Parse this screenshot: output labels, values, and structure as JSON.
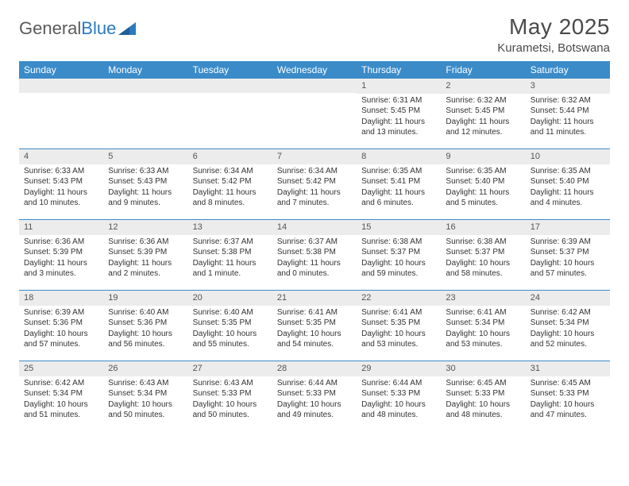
{
  "brand": {
    "part1": "General",
    "part2": "Blue"
  },
  "title": "May 2025",
  "location": "Kurametsi, Botswana",
  "colors": {
    "header_bg": "#3b8bc9",
    "header_text": "#ffffff",
    "daynum_bg": "#ececec",
    "week_border": "#3b8bc9",
    "text": "#333333",
    "logo_gray": "#5a5a5a",
    "logo_blue": "#2a7ac0"
  },
  "typography": {
    "month_title_pt": 28,
    "location_pt": 15,
    "weekday_pt": 12,
    "cell_pt": 10
  },
  "weekdays": [
    "Sunday",
    "Monday",
    "Tuesday",
    "Wednesday",
    "Thursday",
    "Friday",
    "Saturday"
  ],
  "weeks": [
    [
      null,
      null,
      null,
      null,
      {
        "n": "1",
        "sr": "6:31 AM",
        "ss": "5:45 PM",
        "dl": "11 hours and 13 minutes."
      },
      {
        "n": "2",
        "sr": "6:32 AM",
        "ss": "5:45 PM",
        "dl": "11 hours and 12 minutes."
      },
      {
        "n": "3",
        "sr": "6:32 AM",
        "ss": "5:44 PM",
        "dl": "11 hours and 11 minutes."
      }
    ],
    [
      {
        "n": "4",
        "sr": "6:33 AM",
        "ss": "5:43 PM",
        "dl": "11 hours and 10 minutes."
      },
      {
        "n": "5",
        "sr": "6:33 AM",
        "ss": "5:43 PM",
        "dl": "11 hours and 9 minutes."
      },
      {
        "n": "6",
        "sr": "6:34 AM",
        "ss": "5:42 PM",
        "dl": "11 hours and 8 minutes."
      },
      {
        "n": "7",
        "sr": "6:34 AM",
        "ss": "5:42 PM",
        "dl": "11 hours and 7 minutes."
      },
      {
        "n": "8",
        "sr": "6:35 AM",
        "ss": "5:41 PM",
        "dl": "11 hours and 6 minutes."
      },
      {
        "n": "9",
        "sr": "6:35 AM",
        "ss": "5:40 PM",
        "dl": "11 hours and 5 minutes."
      },
      {
        "n": "10",
        "sr": "6:35 AM",
        "ss": "5:40 PM",
        "dl": "11 hours and 4 minutes."
      }
    ],
    [
      {
        "n": "11",
        "sr": "6:36 AM",
        "ss": "5:39 PM",
        "dl": "11 hours and 3 minutes."
      },
      {
        "n": "12",
        "sr": "6:36 AM",
        "ss": "5:39 PM",
        "dl": "11 hours and 2 minutes."
      },
      {
        "n": "13",
        "sr": "6:37 AM",
        "ss": "5:38 PM",
        "dl": "11 hours and 1 minute."
      },
      {
        "n": "14",
        "sr": "6:37 AM",
        "ss": "5:38 PM",
        "dl": "11 hours and 0 minutes."
      },
      {
        "n": "15",
        "sr": "6:38 AM",
        "ss": "5:37 PM",
        "dl": "10 hours and 59 minutes."
      },
      {
        "n": "16",
        "sr": "6:38 AM",
        "ss": "5:37 PM",
        "dl": "10 hours and 58 minutes."
      },
      {
        "n": "17",
        "sr": "6:39 AM",
        "ss": "5:37 PM",
        "dl": "10 hours and 57 minutes."
      }
    ],
    [
      {
        "n": "18",
        "sr": "6:39 AM",
        "ss": "5:36 PM",
        "dl": "10 hours and 57 minutes."
      },
      {
        "n": "19",
        "sr": "6:40 AM",
        "ss": "5:36 PM",
        "dl": "10 hours and 56 minutes."
      },
      {
        "n": "20",
        "sr": "6:40 AM",
        "ss": "5:35 PM",
        "dl": "10 hours and 55 minutes."
      },
      {
        "n": "21",
        "sr": "6:41 AM",
        "ss": "5:35 PM",
        "dl": "10 hours and 54 minutes."
      },
      {
        "n": "22",
        "sr": "6:41 AM",
        "ss": "5:35 PM",
        "dl": "10 hours and 53 minutes."
      },
      {
        "n": "23",
        "sr": "6:41 AM",
        "ss": "5:34 PM",
        "dl": "10 hours and 53 minutes."
      },
      {
        "n": "24",
        "sr": "6:42 AM",
        "ss": "5:34 PM",
        "dl": "10 hours and 52 minutes."
      }
    ],
    [
      {
        "n": "25",
        "sr": "6:42 AM",
        "ss": "5:34 PM",
        "dl": "10 hours and 51 minutes."
      },
      {
        "n": "26",
        "sr": "6:43 AM",
        "ss": "5:34 PM",
        "dl": "10 hours and 50 minutes."
      },
      {
        "n": "27",
        "sr": "6:43 AM",
        "ss": "5:33 PM",
        "dl": "10 hours and 50 minutes."
      },
      {
        "n": "28",
        "sr": "6:44 AM",
        "ss": "5:33 PM",
        "dl": "10 hours and 49 minutes."
      },
      {
        "n": "29",
        "sr": "6:44 AM",
        "ss": "5:33 PM",
        "dl": "10 hours and 48 minutes."
      },
      {
        "n": "30",
        "sr": "6:45 AM",
        "ss": "5:33 PM",
        "dl": "10 hours and 48 minutes."
      },
      {
        "n": "31",
        "sr": "6:45 AM",
        "ss": "5:33 PM",
        "dl": "10 hours and 47 minutes."
      }
    ]
  ],
  "labels": {
    "sunrise": "Sunrise: ",
    "sunset": "Sunset: ",
    "daylight": "Daylight: "
  }
}
